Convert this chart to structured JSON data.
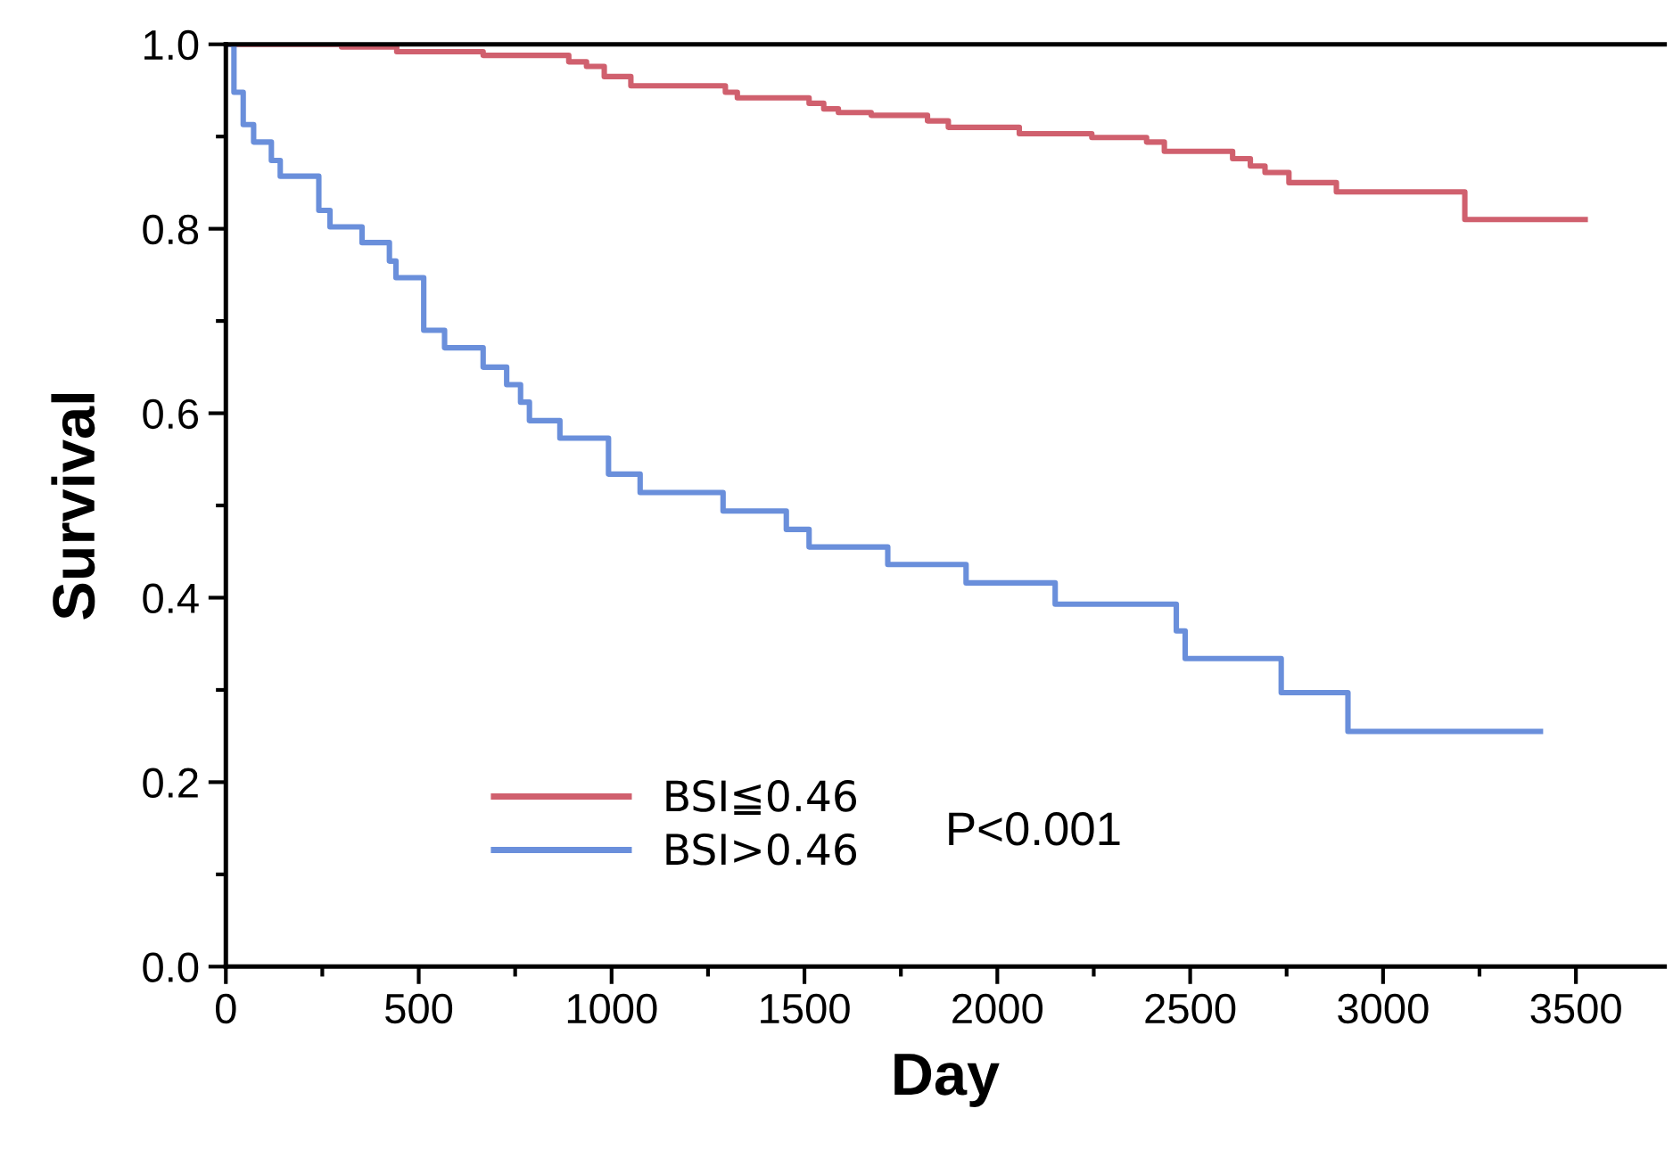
{
  "chart_data": {
    "type": "step",
    "xlabel": "Day",
    "ylabel": "Survival",
    "xlim": [
      0,
      3730
    ],
    "ylim": [
      0,
      1
    ],
    "xticks": [
      0,
      {
        "value": 250,
        "label": null
      },
      500,
      {
        "value": 750,
        "label": null
      },
      1000,
      {
        "value": 1250,
        "label": null
      },
      1500,
      {
        "value": 1750,
        "label": null
      },
      2000,
      {
        "value": 2250,
        "label": null
      },
      2500,
      {
        "value": 2750,
        "label": null
      },
      3000,
      {
        "value": 3250,
        "label": null
      },
      3500
    ],
    "yticks": [
      {
        "value": 0,
        "label": "0.0"
      },
      {
        "value": 0.1,
        "label": null
      },
      0.2,
      {
        "value": 0.3,
        "label": null
      },
      0.4,
      {
        "value": 0.5,
        "label": null
      },
      0.6,
      {
        "value": 0.7,
        "label": null
      },
      0.8,
      {
        "value": 0.9,
        "label": null
      },
      {
        "value": 1,
        "label": "1.0"
      }
    ],
    "grid": false,
    "legend": "bottom left",
    "marker": "none",
    "line_style": "solid",
    "annotations": [
      "P<0.001"
    ],
    "series": [
      {
        "name": "BSI≦0.46",
        "color": "#d0606e",
        "x": [
          0,
          300,
          443,
          667,
          889,
          935,
          981,
          1050,
          1295,
          1326,
          1512,
          1550,
          1588,
          1673,
          1819,
          1873,
          2057,
          2245,
          2387,
          2433,
          2610,
          2656,
          2694,
          2756,
          2879,
          3212,
          3524
        ],
        "values": [
          1,
          0.997,
          0.992,
          0.988,
          0.981,
          0.976,
          0.965,
          0.955,
          0.948,
          0.942,
          0.936,
          0.93,
          0.926,
          0.923,
          0.917,
          0.91,
          0.903,
          0.899,
          0.894,
          0.884,
          0.876,
          0.868,
          0.861,
          0.85,
          0.84,
          0.81,
          0.81
        ]
      },
      {
        "name": "BSI>0.46",
        "color": "#6a8fdb",
        "x": [
          0,
          21,
          45,
          72,
          118,
          141,
          241,
          270,
          353,
          424,
          441,
          513,
          567,
          667,
          728,
          764,
          787,
          866,
          992,
          1074,
          1289,
          1453,
          1512,
          1716,
          1919,
          2150,
          2464,
          2487,
          2736,
          2909,
          3408
        ],
        "values": [
          1,
          0.948,
          0.913,
          0.894,
          0.874,
          0.857,
          0.82,
          0.802,
          0.785,
          0.765,
          0.747,
          0.69,
          0.671,
          0.65,
          0.631,
          0.612,
          0.592,
          0.573,
          0.534,
          0.514,
          0.494,
          0.474,
          0.455,
          0.436,
          0.416,
          0.393,
          0.364,
          0.334,
          0.297,
          0.255,
          0.255
        ]
      }
    ]
  }
}
